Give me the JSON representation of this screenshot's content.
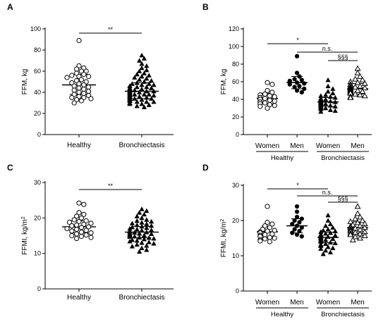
{
  "chart_data": [
    {
      "panel": "A",
      "type": "scatter",
      "ylabel": "FFM, kg",
      "ylim": [
        0,
        100
      ],
      "yticks": [
        0,
        20,
        40,
        60,
        80,
        100
      ],
      "categories": [
        "Healthy",
        "Bronchiectasis"
      ],
      "series": [
        {
          "marker": "open-circle",
          "mean": 47,
          "sd_low": 38,
          "sd_high": 57,
          "values": [
            89,
            65,
            63,
            62,
            60,
            60,
            58,
            57,
            56,
            55,
            55,
            54,
            52,
            51,
            50,
            49,
            48,
            47,
            46,
            45,
            44,
            43,
            42,
            41,
            40,
            39,
            38,
            37,
            36,
            35,
            35,
            34,
            33,
            32,
            30
          ]
        },
        {
          "marker": "filled-triangle",
          "mean": 41,
          "sd_low": 34,
          "sd_high": 49,
          "values": [
            75,
            72,
            70,
            67,
            65,
            63,
            61,
            60,
            58,
            57,
            56,
            55,
            54,
            53,
            52,
            51,
            50,
            49,
            48,
            48,
            47,
            47,
            46,
            46,
            45,
            45,
            44,
            44,
            44,
            43,
            43,
            43,
            42,
            42,
            42,
            41,
            41,
            41,
            41,
            40,
            40,
            40,
            40,
            39,
            39,
            39,
            39,
            38,
            38,
            38,
            38,
            37,
            37,
            37,
            37,
            36,
            36,
            36,
            36,
            35,
            35,
            35,
            35,
            34,
            34,
            34,
            34,
            33,
            33,
            33,
            32,
            32,
            32,
            31,
            31,
            31,
            30,
            30,
            29,
            29,
            28,
            27,
            26
          ]
        }
      ],
      "comparisons": [
        {
          "from": 0,
          "to": 1,
          "label": "**"
        }
      ]
    },
    {
      "panel": "B",
      "type": "scatter",
      "ylabel": "FFM, kg",
      "ylim": [
        0,
        120
      ],
      "yticks": [
        0,
        20,
        40,
        60,
        80,
        100,
        120
      ],
      "categories": [
        "Women",
        "Men",
        "Women",
        "Men"
      ],
      "groups": [
        {
          "label": "Healthy",
          "span": [
            0,
            1
          ]
        },
        {
          "label": "Bronchiectasis",
          "span": [
            2,
            3
          ]
        }
      ],
      "series": [
        {
          "marker": "open-circle",
          "mean": 41,
          "sd_low": 35,
          "sd_high": 47,
          "values": [
            59,
            57,
            50,
            48,
            46,
            45,
            44,
            43,
            42,
            42,
            41,
            40,
            40,
            39,
            38,
            37,
            36,
            35,
            34,
            33,
            32,
            30
          ]
        },
        {
          "marker": "filled-circle",
          "mean": 59,
          "sd_low": 52,
          "sd_high": 66,
          "values": [
            89,
            70,
            66,
            63,
            62,
            61,
            60,
            59,
            58,
            57,
            55,
            54,
            52,
            50,
            48
          ]
        },
        {
          "marker": "filled-triangle",
          "mean": 37,
          "sd_low": 32,
          "sd_high": 42,
          "values": [
            62,
            55,
            52,
            49,
            47,
            45,
            44,
            43,
            42,
            41,
            41,
            40,
            40,
            39,
            39,
            38,
            38,
            38,
            37,
            37,
            37,
            36,
            36,
            36,
            35,
            35,
            35,
            34,
            34,
            34,
            33,
            33,
            33,
            32,
            32,
            31,
            31,
            30,
            30,
            29,
            28,
            27,
            26
          ]
        },
        {
          "marker": "open-triangle",
          "mean": 52,
          "sd_low": 46,
          "sd_high": 58,
          "values": [
            75,
            70,
            66,
            63,
            62,
            60,
            59,
            58,
            57,
            56,
            55,
            54,
            54,
            53,
            53,
            52,
            52,
            51,
            51,
            50,
            50,
            49,
            49,
            48,
            48,
            47,
            47,
            46,
            45,
            44,
            43,
            42
          ]
        }
      ],
      "comparisons": [
        {
          "from": 0,
          "to": 2,
          "label": "*"
        },
        {
          "from": 1,
          "to": 3,
          "label": "n.s."
        },
        {
          "from": 2,
          "to": 3,
          "label": "§§§"
        }
      ]
    },
    {
      "panel": "C",
      "type": "scatter",
      "ylabel": "FFMI, kg/m",
      "ylabel_sup": "2",
      "ylim": [
        0,
        30
      ],
      "yticks": [
        0,
        10,
        20,
        30
      ],
      "categories": [
        "Healthy",
        "Bronchiectasis"
      ],
      "series": [
        {
          "marker": "open-circle",
          "mean": 17.5,
          "sd_low": 15.8,
          "sd_high": 19.2,
          "values": [
            24.2,
            23.8,
            21.5,
            21.0,
            20.5,
            20.0,
            19.5,
            19.2,
            19.0,
            18.8,
            18.5,
            18.2,
            18.0,
            17.8,
            17.5,
            17.3,
            17.0,
            16.8,
            16.5,
            16.3,
            16.0,
            15.8,
            15.5,
            15.2,
            15.0,
            14.8,
            14.5,
            14.2
          ]
        },
        {
          "marker": "filled-triangle",
          "mean": 16,
          "sd_low": 14.4,
          "sd_high": 17.6,
          "values": [
            22.5,
            22.0,
            21.5,
            21.0,
            20.5,
            20.0,
            19.5,
            19.2,
            19.0,
            18.7,
            18.5,
            18.3,
            18.0,
            17.8,
            17.6,
            17.4,
            17.2,
            17.0,
            16.8,
            16.6,
            16.5,
            16.3,
            16.2,
            16.0,
            15.9,
            15.8,
            15.6,
            15.5,
            15.4,
            15.2,
            15.1,
            15.0,
            14.8,
            14.7,
            14.5,
            14.4,
            14.2,
            14.0,
            13.8,
            13.6,
            13.4,
            13.2,
            13.0,
            12.8,
            12.5,
            12.2,
            12.0,
            11.5,
            11.0,
            10.5
          ]
        }
      ],
      "comparisons": [
        {
          "from": 0,
          "to": 1,
          "label": "**"
        }
      ]
    },
    {
      "panel": "D",
      "type": "scatter",
      "ylabel": "FFMI, kg/m",
      "ylabel_sup": "2",
      "ylim": [
        0,
        30
      ],
      "yticks": [
        0,
        10,
        20,
        30
      ],
      "categories": [
        "Women",
        "Men",
        "Women",
        "Men"
      ],
      "groups": [
        {
          "label": "Healthy",
          "span": [
            0,
            1
          ]
        },
        {
          "label": "Bronchiectasis",
          "span": [
            2,
            3
          ]
        }
      ],
      "series": [
        {
          "marker": "open-circle",
          "mean": 16.8,
          "sd_low": 15.2,
          "sd_high": 18.4,
          "values": [
            24.0,
            19.5,
            19.0,
            18.5,
            18.0,
            17.5,
            17.2,
            17.0,
            16.8,
            16.5,
            16.2,
            16.0,
            15.8,
            15.5,
            15.2,
            15.0,
            14.8,
            14.5,
            14.2,
            14.0
          ]
        },
        {
          "marker": "filled-circle",
          "mean": 18.5,
          "sd_low": 16.5,
          "sd_high": 20.5,
          "values": [
            24.0,
            22.5,
            21.0,
            20.5,
            20.0,
            19.5,
            19.0,
            18.5,
            18.0,
            17.5,
            17.0,
            16.5,
            16.0,
            15.5
          ]
        },
        {
          "marker": "filled-triangle",
          "mean": 15.2,
          "sd_low": 13.7,
          "sd_high": 16.7,
          "values": [
            21.5,
            20.0,
            19.0,
            18.5,
            18.0,
            17.5,
            17.2,
            17.0,
            16.8,
            16.5,
            16.3,
            16.1,
            16.0,
            15.8,
            15.6,
            15.5,
            15.4,
            15.2,
            15.1,
            15.0,
            14.8,
            14.7,
            14.5,
            14.4,
            14.2,
            14.0,
            13.8,
            13.6,
            13.4,
            13.2,
            13.0,
            12.8,
            12.5,
            12.2,
            12.0,
            11.5,
            11.0,
            10.5
          ]
        },
        {
          "marker": "open-triangle",
          "mean": 18,
          "sd_low": 16.4,
          "sd_high": 19.6,
          "values": [
            24.0,
            22.0,
            21.0,
            20.5,
            20.0,
            19.7,
            19.4,
            19.1,
            18.8,
            18.5,
            18.3,
            18.1,
            18.0,
            17.8,
            17.6,
            17.4,
            17.2,
            17.0,
            16.8,
            16.6,
            16.4,
            16.2,
            16.0,
            15.7,
            15.4,
            15.0,
            14.5
          ]
        }
      ],
      "comparisons": [
        {
          "from": 0,
          "to": 2,
          "label": "*"
        },
        {
          "from": 1,
          "to": 3,
          "label": "n.s."
        },
        {
          "from": 2,
          "to": 3,
          "label": "§§§"
        }
      ]
    }
  ]
}
